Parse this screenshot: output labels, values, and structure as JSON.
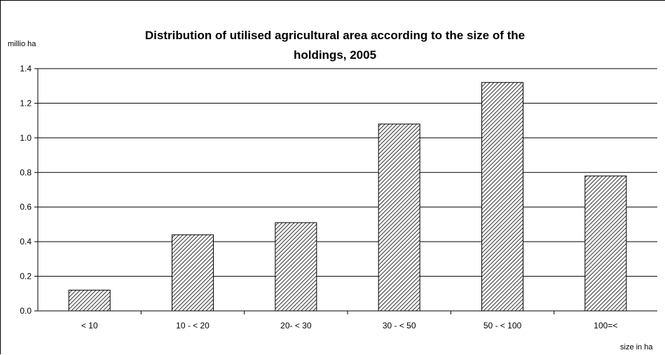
{
  "chart_data": {
    "type": "bar",
    "title_lines": [
      "Distribution of utilised agricultural area according to the size of the",
      "holdings, 2005"
    ],
    "ylabel": "millio ha",
    "xlabel": "size in ha",
    "categories": [
      "< 10",
      "10 - < 20",
      "20- < 30",
      "30 - < 50",
      "50 - < 100",
      "100=<"
    ],
    "values": [
      0.12,
      0.44,
      0.51,
      1.08,
      1.32,
      0.78
    ],
    "ylim": [
      0,
      1.4
    ],
    "yticks": [
      0.0,
      0.2,
      0.4,
      0.6,
      0.8,
      1.0,
      1.2,
      1.4
    ],
    "ytick_labels": [
      "0.0",
      "0.2",
      "0.4",
      "0.6",
      "0.8",
      "1.0",
      "1.2",
      "1.4"
    ],
    "grid": true,
    "bar_fill": "diagonal-hatch",
    "colors": {
      "bar_stroke": "#000000",
      "hatch": "#000000",
      "grid": "#000000"
    }
  }
}
